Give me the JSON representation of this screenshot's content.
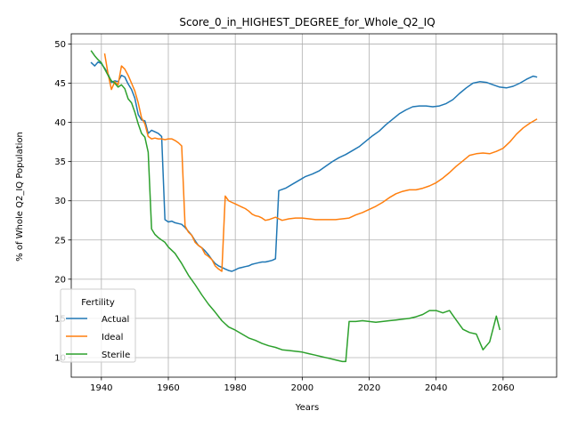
{
  "chart_data": {
    "type": "line",
    "title": "Score_0_in_HIGHEST_DEGREE_for_Whole_Q2_IQ",
    "xlabel": "Years",
    "ylabel": "% of Whole Q2_IQ Population",
    "xlim": [
      1931,
      2076
    ],
    "ylim": [
      7.5,
      51.3
    ],
    "xticks": [
      1940,
      1960,
      1980,
      2000,
      2020,
      2040,
      2060
    ],
    "yticks": [
      10,
      15,
      20,
      25,
      30,
      35,
      40,
      45,
      50
    ],
    "grid": true,
    "legend": {
      "title": "Fertility",
      "placement": "lower-left"
    },
    "series": [
      {
        "name": "Actual",
        "color": "#1f77b4",
        "x": [
          1937,
          1938,
          1939,
          1940,
          1941,
          1942,
          1943,
          1944,
          1945,
          1946,
          1947,
          1948,
          1949,
          1950,
          1951,
          1952,
          1953,
          1954,
          1955,
          1956,
          1957,
          1958,
          1959,
          1960,
          1961,
          1962,
          1963,
          1964,
          1965,
          1966,
          1967,
          1968,
          1969,
          1970,
          1971,
          1972,
          1973,
          1974,
          1975,
          1976,
          1977,
          1978,
          1979,
          1980,
          1981,
          1982,
          1983,
          1984,
          1985,
          1986,
          1987,
          1988,
          1989,
          1990,
          1991,
          1992,
          1993,
          1995,
          1997,
          1999,
          2001,
          2003,
          2005,
          2007,
          2009,
          2011,
          2013,
          2015,
          2017,
          2019,
          2021,
          2023,
          2025,
          2027,
          2029,
          2031,
          2033,
          2035,
          2037,
          2039,
          2041,
          2043,
          2045,
          2047,
          2049,
          2051,
          2053,
          2055,
          2057,
          2059,
          2061,
          2063,
          2065,
          2067,
          2069,
          2070
        ],
        "values": [
          47.6,
          47.2,
          47.7,
          47.5,
          46.9,
          46.2,
          45.1,
          45.3,
          45.2,
          46.0,
          45.8,
          44.9,
          44.2,
          43.1,
          41.0,
          40.3,
          40.2,
          38.6,
          39.0,
          38.8,
          38.6,
          38.2,
          27.6,
          27.3,
          27.4,
          27.2,
          27.1,
          27.0,
          26.6,
          26.1,
          25.6,
          24.9,
          24.3,
          24.0,
          23.6,
          23.1,
          22.5,
          22.0,
          21.7,
          21.5,
          21.3,
          21.1,
          21.0,
          21.2,
          21.4,
          21.5,
          21.6,
          21.7,
          21.9,
          22.0,
          22.1,
          22.2,
          22.2,
          22.3,
          22.4,
          22.6,
          31.3,
          31.6,
          32.1,
          32.6,
          33.1,
          33.4,
          33.8,
          34.4,
          35.0,
          35.5,
          35.9,
          36.4,
          36.9,
          37.6,
          38.3,
          38.9,
          39.7,
          40.4,
          41.1,
          41.6,
          42.0,
          42.1,
          42.1,
          42.0,
          42.1,
          42.4,
          42.9,
          43.7,
          44.4,
          45.0,
          45.2,
          45.1,
          44.8,
          44.5,
          44.4,
          44.6,
          45.0,
          45.5,
          45.9,
          45.8
        ]
      },
      {
        "name": "Ideal",
        "color": "#ff7f0e",
        "x": [
          1941,
          1942,
          1943,
          1944,
          1945,
          1946,
          1947,
          1948,
          1949,
          1950,
          1951,
          1952,
          1953,
          1954,
          1955,
          1956,
          1957,
          1958,
          1959,
          1960,
          1961,
          1962,
          1963,
          1964,
          1965,
          1966,
          1967,
          1968,
          1969,
          1970,
          1971,
          1972,
          1973,
          1974,
          1975,
          1976,
          1977,
          1978,
          1979,
          1980,
          1981,
          1982,
          1983,
          1984,
          1985,
          1986,
          1987,
          1988,
          1989,
          1990,
          1992,
          1994,
          1996,
          1998,
          2000,
          2002,
          2004,
          2006,
          2008,
          2010,
          2012,
          2014,
          2016,
          2018,
          2020,
          2022,
          2024,
          2026,
          2028,
          2030,
          2032,
          2034,
          2036,
          2038,
          2040,
          2042,
          2044,
          2046,
          2048,
          2050,
          2052,
          2054,
          2056,
          2058,
          2060,
          2062,
          2064,
          2066,
          2068,
          2070
        ],
        "values": [
          48.7,
          46.2,
          44.2,
          45.2,
          44.8,
          47.2,
          46.8,
          46.0,
          45.0,
          44.0,
          42.5,
          40.6,
          39.8,
          38.2,
          37.9,
          38.0,
          37.9,
          37.9,
          37.8,
          37.9,
          37.9,
          37.7,
          37.4,
          37.0,
          26.8,
          26.0,
          25.6,
          24.7,
          24.3,
          24.0,
          23.2,
          22.9,
          22.5,
          21.7,
          21.3,
          21.0,
          30.6,
          30.0,
          29.8,
          29.6,
          29.4,
          29.2,
          29.0,
          28.7,
          28.3,
          28.1,
          28.0,
          27.8,
          27.5,
          27.6,
          27.9,
          27.5,
          27.7,
          27.8,
          27.8,
          27.7,
          27.6,
          27.6,
          27.6,
          27.6,
          27.7,
          27.8,
          28.2,
          28.5,
          28.9,
          29.3,
          29.8,
          30.4,
          30.9,
          31.2,
          31.4,
          31.4,
          31.6,
          31.9,
          32.3,
          32.9,
          33.6,
          34.4,
          35.1,
          35.8,
          36.0,
          36.1,
          36.0,
          36.3,
          36.7,
          37.5,
          38.5,
          39.3,
          39.9,
          40.4
        ]
      },
      {
        "name": "Sterile",
        "color": "#2ca02c",
        "x": [
          1937,
          1938,
          1939,
          1940,
          1941,
          1942,
          1943,
          1944,
          1945,
          1946,
          1947,
          1948,
          1949,
          1950,
          1951,
          1952,
          1953,
          1954,
          1955,
          1956,
          1957,
          1958,
          1959,
          1960,
          1962,
          1964,
          1966,
          1968,
          1970,
          1972,
          1974,
          1976,
          1978,
          1980,
          1982,
          1984,
          1986,
          1988,
          1990,
          1992,
          1994,
          1996,
          1998,
          2000,
          2002,
          2004,
          2006,
          2008,
          2010,
          2012,
          2013,
          2014,
          2016,
          2018,
          2020,
          2022,
          2024,
          2026,
          2028,
          2030,
          2032,
          2034,
          2036,
          2038,
          2040,
          2042,
          2044,
          2046,
          2048,
          2050,
          2052,
          2054,
          2056,
          2058,
          2059
        ],
        "values": [
          49.1,
          48.5,
          48.0,
          47.6,
          46.8,
          46.0,
          45.3,
          45.0,
          44.5,
          44.8,
          44.3,
          43.0,
          42.5,
          41.3,
          39.8,
          38.6,
          38.1,
          36.2,
          26.4,
          25.7,
          25.3,
          25.0,
          24.7,
          24.1,
          23.3,
          22.0,
          20.5,
          19.3,
          18.0,
          16.8,
          15.8,
          14.7,
          13.9,
          13.5,
          13.0,
          12.5,
          12.2,
          11.8,
          11.5,
          11.3,
          11.0,
          10.9,
          10.8,
          10.7,
          10.5,
          10.3,
          10.1,
          9.9,
          9.7,
          9.5,
          9.5,
          14.6,
          14.6,
          14.7,
          14.6,
          14.5,
          14.6,
          14.7,
          14.8,
          14.9,
          15.0,
          15.2,
          15.5,
          16.0,
          16.0,
          15.7,
          16.0,
          14.8,
          13.6,
          13.2,
          13.0,
          11.0,
          12.0,
          15.3,
          13.6
        ]
      }
    ]
  }
}
